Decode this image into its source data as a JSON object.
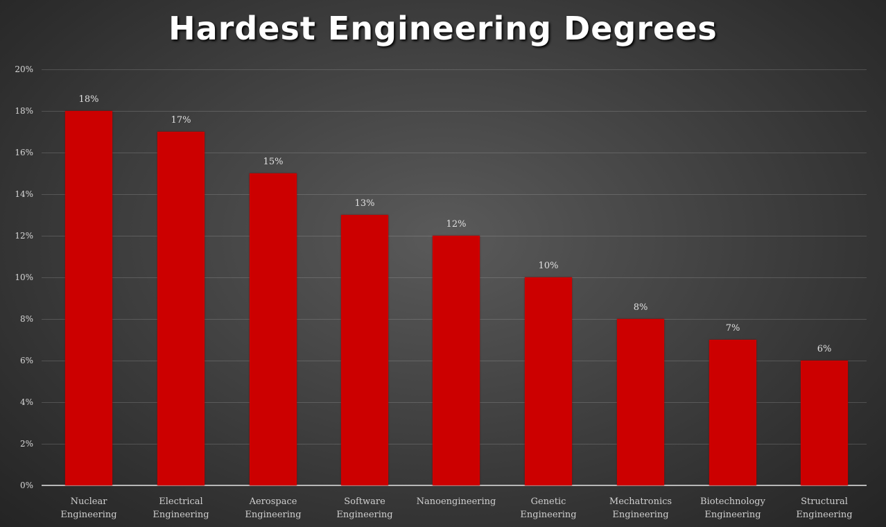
{
  "chart_data": {
    "type": "bar",
    "title": "Hardest Engineering Degrees",
    "xlabel": "",
    "ylabel": "",
    "ylim": [
      0,
      20
    ],
    "yticks": [
      "0%",
      "2%",
      "4%",
      "6%",
      "8%",
      "10%",
      "12%",
      "14%",
      "16%",
      "18%",
      "20%"
    ],
    "grid": true,
    "legend": null,
    "categories": [
      "Nuclear Engineering",
      "Electrical Engineering",
      "Aerospace Engineering",
      "Software Engineering",
      "Nanoengineering",
      "Genetic Engineering",
      "Mechatronics Engineering",
      "Biotechnology Engineering",
      "Structural Engineering"
    ],
    "category_lines": [
      [
        "Nuclear",
        "Engineering"
      ],
      [
        "Electrical",
        "Engineering"
      ],
      [
        "Aerospace",
        "Engineering"
      ],
      [
        "Software",
        "Engineering"
      ],
      [
        "Nanoengineering",
        ""
      ],
      [
        "Genetic",
        "Engineering"
      ],
      [
        "Mechatronics",
        "Engineering"
      ],
      [
        "Biotechnology",
        "Engineering"
      ],
      [
        "Structural",
        "Engineering"
      ]
    ],
    "values": [
      18,
      17,
      15,
      13,
      12,
      10,
      8,
      7,
      6
    ],
    "value_labels": [
      "18%",
      "17%",
      "15%",
      "13%",
      "12%",
      "10%",
      "8%",
      "7%",
      "6%"
    ],
    "colors": {
      "bar": "#cc0000",
      "background": "#3a3a3a",
      "text": "#ffffff"
    }
  }
}
